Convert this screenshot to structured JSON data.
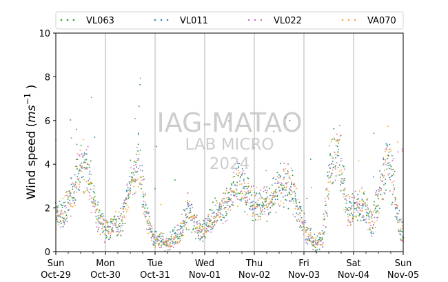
{
  "chart_data": {
    "type": "scatter",
    "ylabel": "Wind speed",
    "ylabel_unit": "ms",
    "ylabel_unit_exp": "−1",
    "ylim": [
      0,
      10
    ],
    "yticks": [
      0,
      2,
      4,
      6,
      8,
      10
    ],
    "xlim": [
      "2023-10-29T00:00",
      "2023-11-05T00:00"
    ],
    "xticks": [
      {
        "date": "2023-10-29",
        "day": "Sun",
        "label": "Oct-29"
      },
      {
        "date": "2023-10-30",
        "day": "Mon",
        "label": "Oct-30"
      },
      {
        "date": "2023-10-31",
        "day": "Tue",
        "label": "Oct-31"
      },
      {
        "date": "2023-11-01",
        "day": "Wed",
        "label": "Nov-01"
      },
      {
        "date": "2023-11-02",
        "day": "Thu",
        "label": "Nov-02"
      },
      {
        "date": "2023-11-03",
        "day": "Fri",
        "label": "Nov-03"
      },
      {
        "date": "2023-11-04",
        "day": "Sat",
        "label": "Nov-04"
      },
      {
        "date": "2023-11-05",
        "day": "Sun",
        "label": "Nov-05"
      }
    ],
    "grid": "vertical",
    "legend_position": "top",
    "watermark": [
      "IAG-MATAO",
      "LAB MICRO",
      "2024"
    ],
    "series": [
      {
        "name": "VL063",
        "color": "#2ca02c"
      },
      {
        "name": "VL011",
        "color": "#3a8fb7"
      },
      {
        "name": "VL022",
        "color": "#c377c8"
      },
      {
        "name": "VA070",
        "color": "#ffa83a"
      }
    ],
    "trend": [
      {
        "t": "2023-10-29T00:00",
        "y": 1.6
      },
      {
        "t": "2023-10-29T04:00",
        "y": 1.8
      },
      {
        "t": "2023-10-29T08:00",
        "y": 2.6
      },
      {
        "t": "2023-10-29T12:00",
        "y": 3.9
      },
      {
        "t": "2023-10-29T16:00",
        "y": 3.6
      },
      {
        "t": "2023-10-29T20:00",
        "y": 1.6
      },
      {
        "t": "2023-10-30T00:00",
        "y": 1.0
      },
      {
        "t": "2023-10-30T04:00",
        "y": 1.2
      },
      {
        "t": "2023-10-30T08:00",
        "y": 1.4
      },
      {
        "t": "2023-10-30T12:00",
        "y": 3.0
      },
      {
        "t": "2023-10-30T16:00",
        "y": 4.3
      },
      {
        "t": "2023-10-30T20:00",
        "y": 1.5
      },
      {
        "t": "2023-10-31T00:00",
        "y": 0.5
      },
      {
        "t": "2023-10-31T06:00",
        "y": 0.4
      },
      {
        "t": "2023-10-31T12:00",
        "y": 0.8
      },
      {
        "t": "2023-10-31T16:00",
        "y": 2.0
      },
      {
        "t": "2023-10-31T22:00",
        "y": 0.8
      },
      {
        "t": "2023-11-01T04:00",
        "y": 1.6
      },
      {
        "t": "2023-11-01T10:00",
        "y": 2.0
      },
      {
        "t": "2023-11-01T16:00",
        "y": 3.3
      },
      {
        "t": "2023-11-01T20:00",
        "y": 2.6
      },
      {
        "t": "2023-11-02T02:00",
        "y": 2.0
      },
      {
        "t": "2023-11-02T08:00",
        "y": 2.4
      },
      {
        "t": "2023-11-02T14:00",
        "y": 3.1
      },
      {
        "t": "2023-11-02T18:00",
        "y": 2.8
      },
      {
        "t": "2023-11-02T22:00",
        "y": 1.6
      },
      {
        "t": "2023-11-03T02:00",
        "y": 0.8
      },
      {
        "t": "2023-11-03T06:00",
        "y": 0.3
      },
      {
        "t": "2023-11-03T09:00",
        "y": 0.6
      },
      {
        "t": "2023-11-03T13:00",
        "y": 4.0
      },
      {
        "t": "2023-11-03T17:00",
        "y": 4.6
      },
      {
        "t": "2023-11-03T21:00",
        "y": 1.8
      },
      {
        "t": "2023-11-04T01:00",
        "y": 2.2
      },
      {
        "t": "2023-11-04T05:00",
        "y": 2.0
      },
      {
        "t": "2023-11-04T09:00",
        "y": 1.3
      },
      {
        "t": "2023-11-04T13:00",
        "y": 2.8
      },
      {
        "t": "2023-11-04T17:00",
        "y": 4.5
      },
      {
        "t": "2023-11-04T21:00",
        "y": 1.8
      },
      {
        "t": "2023-11-05T00:00",
        "y": 0.7
      }
    ]
  }
}
